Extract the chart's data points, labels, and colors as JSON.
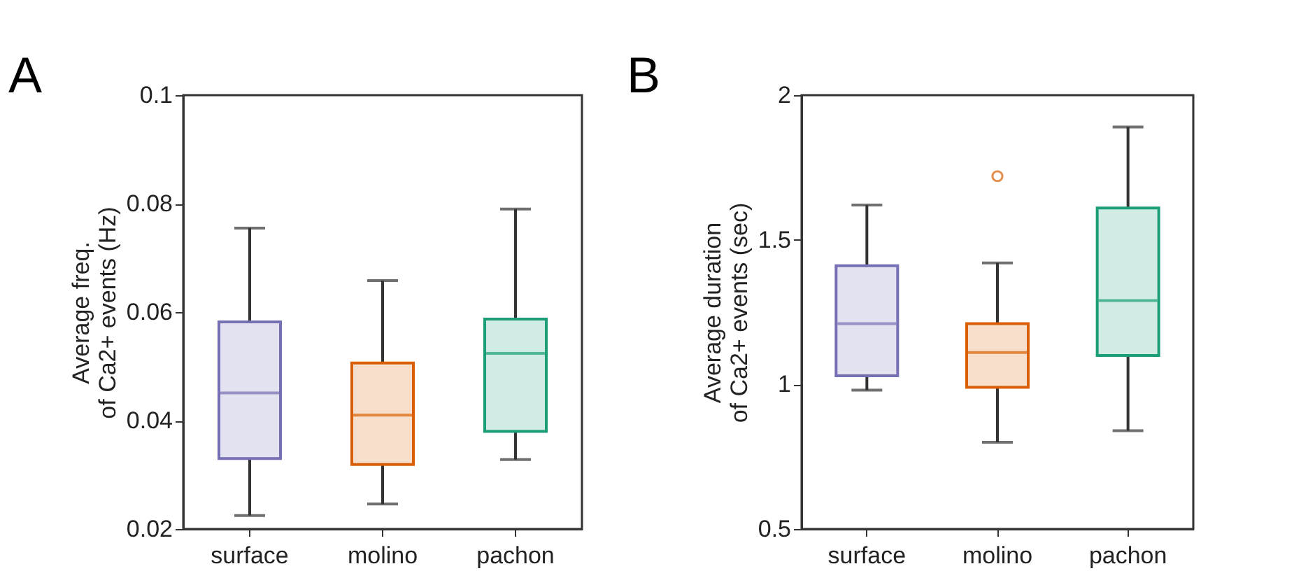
{
  "chart_data": [
    {
      "type": "box",
      "title": "A",
      "ylabel": "Average freq.\nof Ca2+ events (Hz)",
      "categories": [
        "surface",
        "molino",
        "pachon"
      ],
      "colors": [
        "#7570b3",
        "#d95f02",
        "#1b9e77"
      ],
      "ylim": [
        0.02,
        0.1
      ],
      "yticks": [
        0.02,
        0.04,
        0.06,
        0.08,
        0.1
      ],
      "grid": false,
      "boxes": [
        {
          "low": 0.0225,
          "q1": 0.033,
          "median": 0.0451,
          "q3": 0.0582,
          "high": 0.0755
        },
        {
          "low": 0.0246,
          "q1": 0.0319,
          "median": 0.041,
          "q3": 0.0506,
          "high": 0.0658
        },
        {
          "low": 0.0328,
          "q1": 0.038,
          "median": 0.0524,
          "q3": 0.0587,
          "high": 0.079
        }
      ]
    },
    {
      "type": "box",
      "title": "B",
      "ylabel": "Average duration\nof Ca2+ events (sec)",
      "categories": [
        "surface",
        "molino",
        "pachon"
      ],
      "colors": [
        "#7570b3",
        "#d95f02",
        "#1b9e77"
      ],
      "ylim": [
        0.5,
        2
      ],
      "yticks": [
        0.5,
        1,
        1.5,
        2
      ],
      "grid": false,
      "boxes": [
        {
          "low": 0.98,
          "q1": 1.03,
          "median": 1.21,
          "q3": 1.41,
          "high": 1.62
        },
        {
          "low": 0.8,
          "q1": 0.99,
          "median": 1.11,
          "q3": 1.21,
          "high": 1.42,
          "outliers": [
            1.72
          ]
        },
        {
          "low": 0.84,
          "q1": 1.1,
          "median": 1.29,
          "q3": 1.61,
          "high": 1.89
        }
      ]
    }
  ]
}
